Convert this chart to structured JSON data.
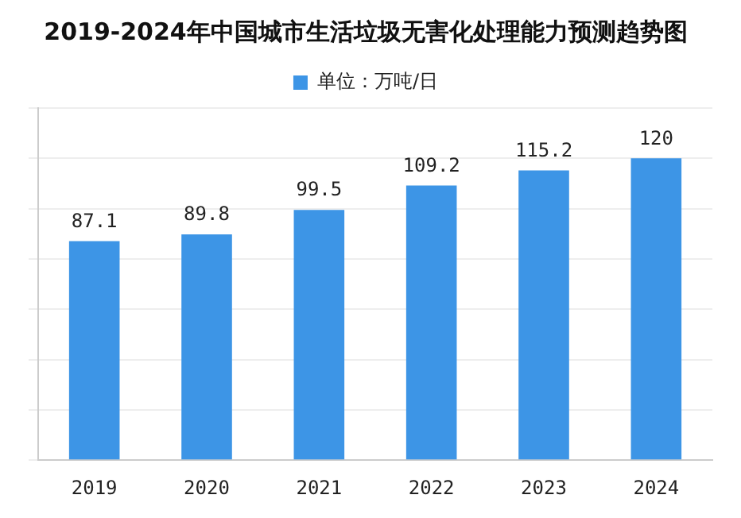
{
  "chart_data": {
    "type": "bar",
    "title": "2019-2024年中国城市生活垃圾无害化处理能力预测趋势图",
    "categories": [
      "2019",
      "2020",
      "2021",
      "2022",
      "2023",
      "2024"
    ],
    "series": [
      {
        "name": "单位：万吨/日",
        "color": "#3d95e6",
        "values": [
          87.1,
          89.8,
          99.5,
          109.2,
          115.2,
          120
        ]
      }
    ],
    "data_labels": true,
    "tick_labels": "x",
    "grid": "y",
    "legend": "top"
  }
}
